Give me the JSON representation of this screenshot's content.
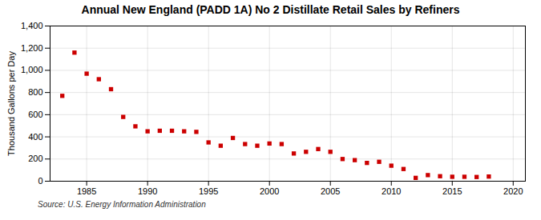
{
  "chart_data": {
    "type": "scatter",
    "title": "Annual New England (PADD 1A) No 2 Distillate Retail Sales by Refiners",
    "ylabel": "Thousand Gallons per Day",
    "source": "Source: U.S. Energy Information Administration",
    "x": [
      1983,
      1984,
      1985,
      1986,
      1987,
      1988,
      1989,
      1990,
      1991,
      1992,
      1993,
      1994,
      1995,
      1996,
      1997,
      1998,
      1999,
      2000,
      2001,
      2002,
      2003,
      2004,
      2005,
      2006,
      2007,
      2008,
      2009,
      2010,
      2011,
      2012,
      2013,
      2014,
      2015,
      2016,
      2017,
      2018
    ],
    "values": [
      770,
      1160,
      970,
      920,
      830,
      580,
      495,
      450,
      455,
      455,
      450,
      445,
      350,
      320,
      390,
      335,
      320,
      340,
      335,
      250,
      265,
      290,
      265,
      200,
      190,
      165,
      175,
      140,
      110,
      30,
      55,
      45,
      40,
      40,
      38,
      42
    ],
    "xlim": [
      1982,
      2021
    ],
    "ylim": [
      0,
      1400
    ],
    "xticks": [
      1985,
      1990,
      1995,
      2000,
      2005,
      2010,
      2015,
      2020
    ],
    "yticks": [
      0,
      200,
      400,
      600,
      800,
      {
        "value": 1000,
        "label": "1,000"
      },
      {
        "value": 1200,
        "label": "1,200"
      },
      {
        "value": 1400,
        "label": "1,400"
      }
    ],
    "grid": true,
    "color": "#cc0000",
    "marker": "square"
  }
}
